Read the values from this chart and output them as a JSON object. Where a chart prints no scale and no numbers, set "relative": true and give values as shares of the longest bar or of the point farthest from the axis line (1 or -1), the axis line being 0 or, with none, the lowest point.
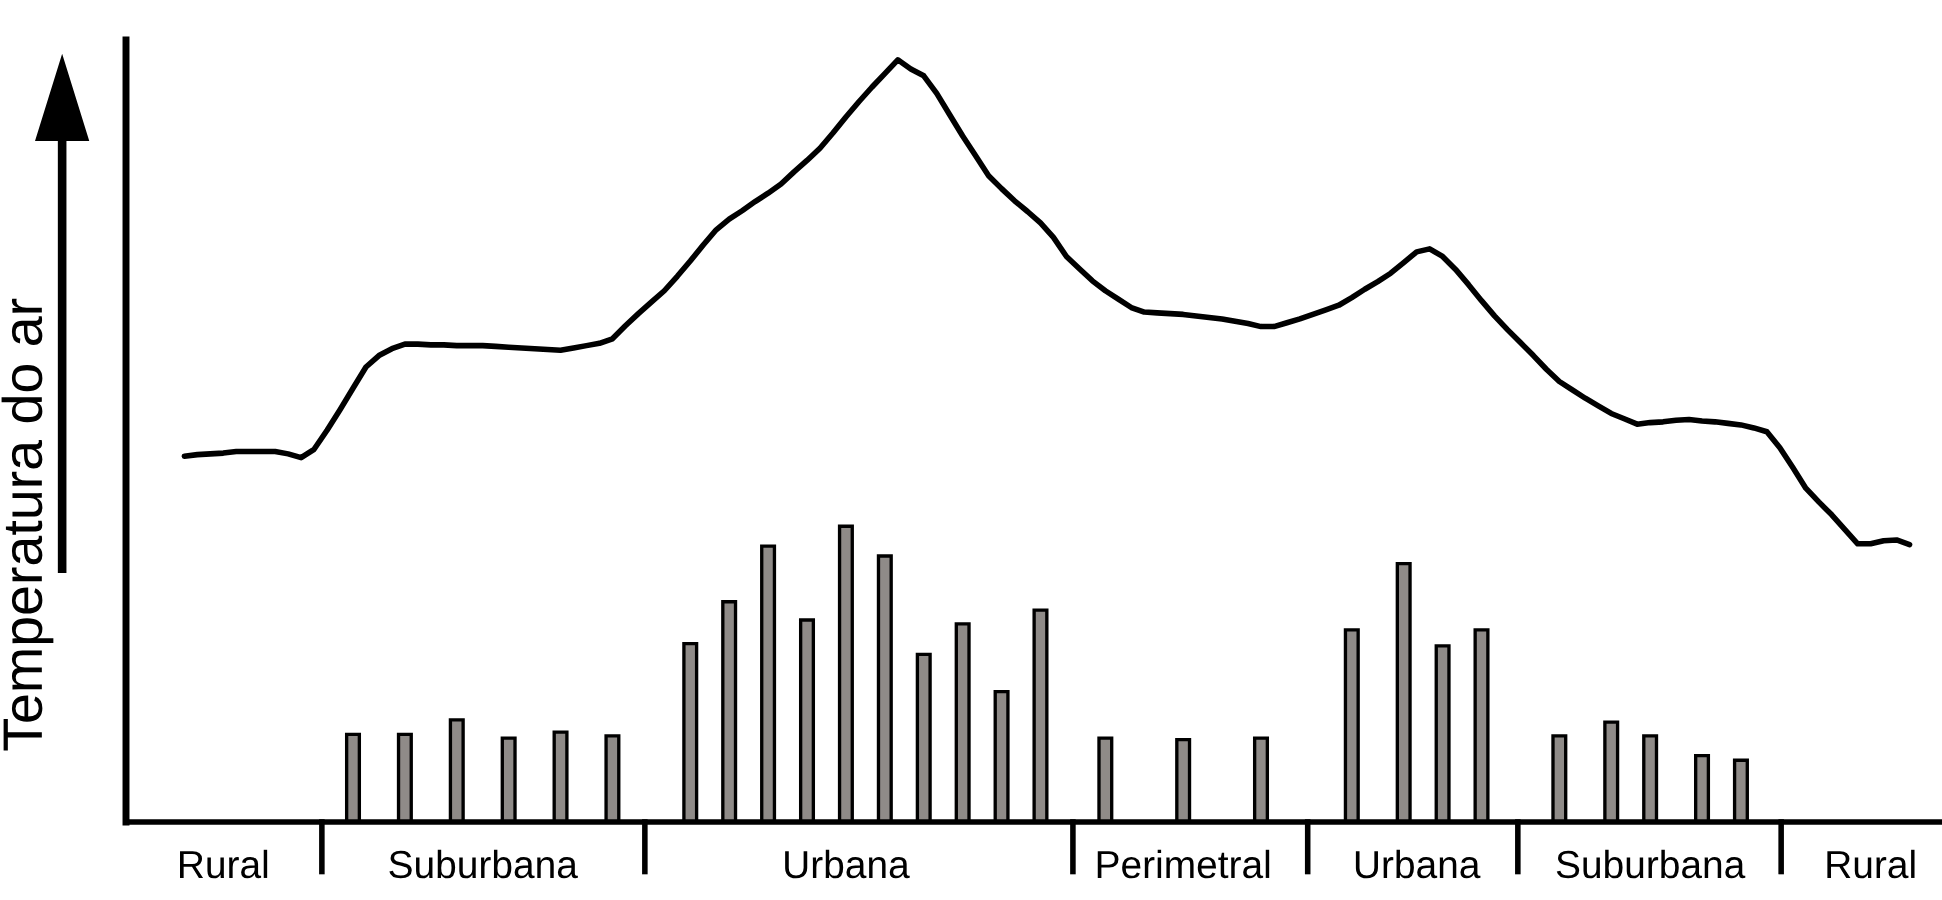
{
  "chart_data": {
    "type": "bar",
    "relative": true,
    "ylabel": "Temperatura do ar",
    "categories": [
      null,
      null,
      null,
      null,
      null,
      null,
      null,
      "Rural",
      null,
      null,
      null,
      null,
      null,
      null,
      null,
      null,
      null,
      null,
      null,
      null,
      null,
      null,
      null,
      null,
      null,
      null,
      null,
      "Suburbana",
      null,
      null,
      null,
      null,
      null,
      null,
      null,
      null,
      null,
      null,
      null,
      null,
      null,
      null,
      null,
      null,
      null,
      null,
      null,
      null,
      null,
      null,
      null,
      null,
      null,
      null,
      null,
      "Urbana",
      null,
      null,
      null,
      null,
      null,
      null,
      null,
      null,
      null,
      null,
      null,
      null,
      null,
      null,
      null,
      null,
      null,
      null,
      null,
      null,
      null,
      null,
      null,
      null,
      null,
      "Perimetral",
      null,
      null,
      null,
      null,
      null,
      null,
      null,
      null,
      null,
      null,
      null,
      null,
      null,
      null,
      null,
      null,
      null,
      "Urbana",
      null,
      null,
      null,
      null,
      null,
      null,
      null,
      null,
      null,
      null,
      null,
      null,
      null,
      null,
      null,
      null,
      null,
      "Suburbana",
      null,
      null,
      null,
      null,
      null,
      null,
      null,
      null,
      null,
      null,
      null,
      null,
      null,
      null,
      null,
      null,
      "Rural",
      null,
      null,
      null,
      null,
      null
    ],
    "tick_labels": "x",
    "grid": false,
    "series": [
      {
        "color": "#8f8b88",
        "values": [
          null,
          null,
          null,
          null,
          null,
          null,
          null,
          null,
          null,
          null,
          null,
          null,
          null,
          null,
          null,
          null,
          null,
          0.115,
          null,
          null,
          null,
          0.115,
          null,
          null,
          null,
          0.134,
          null,
          null,
          null,
          0.11,
          null,
          null,
          null,
          0.118,
          null,
          null,
          null,
          0.113,
          null,
          null,
          null,
          null,
          null,
          0.234,
          null,
          null,
          0.289,
          null,
          null,
          0.362,
          null,
          null,
          0.265,
          null,
          null,
          0.388,
          null,
          null,
          0.349,
          null,
          null,
          0.22,
          null,
          null,
          0.26,
          null,
          null,
          0.171,
          null,
          null,
          0.278,
          null,
          null,
          null,
          null,
          0.11,
          null,
          null,
          null,
          null,
          null,
          0.108,
          null,
          null,
          null,
          null,
          null,
          0.11,
          null,
          null,
          null,
          null,
          null,
          null,
          0.252,
          null,
          null,
          null,
          0.339,
          null,
          null,
          0.231,
          null,
          null,
          0.252,
          null,
          null,
          null,
          null,
          null,
          0.113,
          null,
          null,
          null,
          0.131,
          null,
          null,
          0.113,
          null,
          null,
          null,
          0.087,
          null,
          null,
          0.081,
          null,
          null,
          null,
          null,
          null,
          null,
          null,
          null,
          null,
          null,
          null,
          null,
          null,
          null,
          null
        ]
      },
      {
        "type": "line",
        "color": "#000000",
        "values": [
          null,
          null,
          null,
          null,
          0.48,
          0.482,
          0.483,
          0.484,
          0.486,
          0.486,
          0.486,
          0.486,
          0.483,
          0.478,
          0.489,
          0.514,
          0.541,
          0.569,
          0.597,
          0.612,
          0.621,
          0.627,
          0.627,
          0.626,
          0.626,
          0.625,
          0.625,
          0.625,
          0.624,
          0.623,
          0.622,
          0.621,
          0.62,
          0.619,
          0.622,
          0.625,
          0.628,
          0.634,
          0.651,
          0.667,
          0.682,
          0.697,
          0.716,
          0.736,
          0.757,
          0.777,
          0.791,
          0.802,
          0.814,
          0.825,
          0.837,
          0.853,
          0.868,
          0.884,
          0.904,
          0.925,
          0.945,
          0.964,
          0.982,
          1,
          0.988,
          0.979,
          0.956,
          0.928,
          0.9,
          0.874,
          0.848,
          0.831,
          0.815,
          0.801,
          0.786,
          0.767,
          0.742,
          0.726,
          0.71,
          0.697,
          0.686,
          0.675,
          0.669,
          0.668,
          0.667,
          0.666,
          0.664,
          0.662,
          0.66,
          0.657,
          0.654,
          0.65,
          0.65,
          0.655,
          0.66,
          0.666,
          0.672,
          0.678,
          0.688,
          0.699,
          0.709,
          0.72,
          0.734,
          0.748,
          0.752,
          0.742,
          0.725,
          0.705,
          0.684,
          0.664,
          0.646,
          0.629,
          0.612,
          0.594,
          0.578,
          0.567,
          0.556,
          0.546,
          0.536,
          0.529,
          0.522,
          0.524,
          0.525,
          0.527,
          0.528,
          0.526,
          0.525,
          0.523,
          0.521,
          0.517,
          0.512,
          0.491,
          0.465,
          0.438,
          0.42,
          0.403,
          0.384,
          0.365,
          0.365,
          0.369,
          0.37,
          0.364,
          null,
          null
        ]
      }
    ]
  }
}
